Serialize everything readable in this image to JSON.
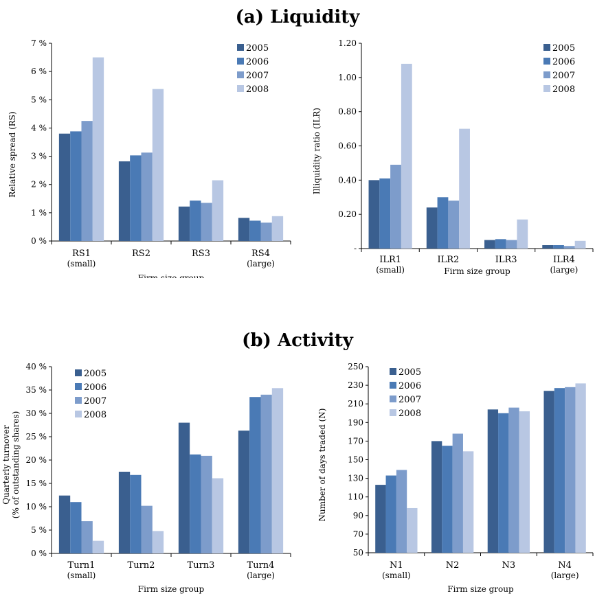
{
  "panels": {
    "a_title": "(a) Liquidity",
    "b_title": "(b) Activity"
  },
  "colors": [
    "#3a5f8f",
    "#4a7ab5",
    "#7d9ccb",
    "#b8c7e3"
  ],
  "chart_data": [
    {
      "type": "bar",
      "categories": [
        "RS1\n(small)",
        "RS2",
        "RS3",
        "RS4\n(large)"
      ],
      "xlabel": "Firm size group",
      "ylabel": "Relative spread (RS)",
      "ylim": [
        0,
        7
      ],
      "yticks": [
        "0 %",
        "1 %",
        "2 %",
        "3 %",
        "4 %",
        "5 %",
        "6 %",
        "7 %"
      ],
      "legend_position": "top-right",
      "series": [
        {
          "name": "2005",
          "values": [
            3.8,
            2.82,
            1.22,
            0.82
          ]
        },
        {
          "name": "2006",
          "values": [
            3.88,
            3.03,
            1.43,
            0.72
          ]
        },
        {
          "name": "2007",
          "values": [
            4.25,
            3.13,
            1.35,
            0.65
          ]
        },
        {
          "name": "2008",
          "values": [
            6.5,
            5.38,
            2.15,
            0.88
          ]
        }
      ]
    },
    {
      "type": "bar",
      "categories": [
        "ILR1\n(small)",
        "ILR2",
        "ILR3",
        "ILR4\n(large)"
      ],
      "xlabel": "Firm size group",
      "ylabel": "Illiquidity ratio (ILR)",
      "ylim": [
        0,
        1.2
      ],
      "yticks": [
        "-",
        "0.20",
        "0.40",
        "0.60",
        "0.80",
        "1.00",
        "1.20"
      ],
      "legend_position": "top-right",
      "series": [
        {
          "name": "2005",
          "values": [
            0.4,
            0.24,
            0.05,
            0.02
          ]
        },
        {
          "name": "2006",
          "values": [
            0.41,
            0.3,
            0.055,
            0.02
          ]
        },
        {
          "name": "2007",
          "values": [
            0.49,
            0.28,
            0.05,
            0.015
          ]
        },
        {
          "name": "2008",
          "values": [
            1.08,
            0.7,
            0.17,
            0.045
          ]
        }
      ]
    },
    {
      "type": "bar",
      "categories": [
        "Turn1\n(small)",
        "Turn2",
        "Turn3",
        "Turn4\n(large)"
      ],
      "xlabel": "Firm size group",
      "ylabel": "Quarterly turnover\n(% of outstanding shares)",
      "ylim": [
        0,
        40
      ],
      "yticks": [
        "0 %",
        "5 %",
        "10 %",
        "15 %",
        "20 %",
        "25 %",
        "30 %",
        "35 %",
        "40 %"
      ],
      "legend_position": "top-left",
      "series": [
        {
          "name": "2005",
          "values": [
            12.4,
            17.5,
            28.0,
            26.3
          ]
        },
        {
          "name": "2006",
          "values": [
            11.0,
            16.8,
            21.2,
            33.5
          ]
        },
        {
          "name": "2007",
          "values": [
            6.9,
            10.2,
            20.9,
            34.0
          ]
        },
        {
          "name": "2008",
          "values": [
            2.7,
            4.8,
            16.1,
            35.4
          ]
        }
      ]
    },
    {
      "type": "bar",
      "categories": [
        "N1\n(small)",
        "N2",
        "N3",
        "N4\n(large)"
      ],
      "xlabel": "Firm size group",
      "ylabel": "Number of days traded (N)",
      "ylim": [
        50,
        250
      ],
      "yticks": [
        "50",
        "70",
        "90",
        "110",
        "130",
        "150",
        "170",
        "190",
        "210",
        "230",
        "250"
      ],
      "legend_position": "top-left",
      "series": [
        {
          "name": "2005",
          "values": [
            123,
            170,
            204,
            224
          ]
        },
        {
          "name": "2006",
          "values": [
            133,
            165,
            200,
            227
          ]
        },
        {
          "name": "2007",
          "values": [
            139,
            178,
            206,
            228
          ]
        },
        {
          "name": "2008",
          "values": [
            98,
            159,
            202,
            232
          ]
        }
      ]
    }
  ]
}
